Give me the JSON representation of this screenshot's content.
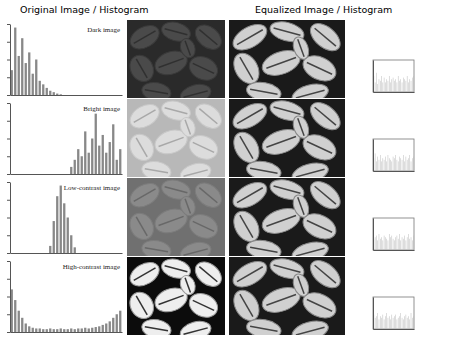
{
  "header": {
    "left": "Original Image / Histogram",
    "right": "Equalized Image / Histogram"
  },
  "chart_data": [
    {
      "type": "histogram",
      "title": "Dark image",
      "color": "#888888",
      "tick_labels": false,
      "bins": [
        0,
        8,
        16,
        24,
        32,
        40,
        48,
        56,
        64,
        72,
        80,
        88,
        96,
        104,
        112,
        120,
        128,
        136,
        144,
        152,
        160,
        168,
        176,
        184,
        192,
        200,
        208,
        216,
        224,
        232,
        240,
        248,
        256
      ],
      "counts": [
        0.35,
        0.95,
        0.55,
        0.8,
        0.45,
        0.6,
        0.3,
        0.5,
        0.2,
        0.15,
        0.1,
        0.06,
        0.04,
        0.02,
        0.01,
        0,
        0,
        0,
        0,
        0,
        0,
        0,
        0,
        0,
        0,
        0,
        0,
        0,
        0,
        0,
        0,
        0
      ],
      "xlim": [
        0,
        256
      ],
      "ylim": [
        0,
        1
      ],
      "yticks": [
        0,
        0.25,
        0.5,
        0.75,
        1
      ]
    },
    {
      "type": "histogram",
      "title": "Bright image",
      "color": "#888888",
      "tick_labels": false,
      "bins": [
        0,
        8,
        16,
        24,
        32,
        40,
        48,
        56,
        64,
        72,
        80,
        88,
        96,
        104,
        112,
        120,
        128,
        136,
        144,
        152,
        160,
        168,
        176,
        184,
        192,
        200,
        208,
        216,
        224,
        232,
        240,
        248,
        256
      ],
      "counts": [
        0,
        0,
        0,
        0,
        0,
        0,
        0,
        0,
        0,
        0,
        0,
        0,
        0,
        0,
        0,
        0,
        0,
        0.1,
        0.2,
        0.35,
        0.25,
        0.6,
        0.3,
        0.5,
        0.85,
        0.4,
        0.55,
        0.3,
        0.45,
        0.7,
        0.2,
        0.35
      ],
      "xlim": [
        0,
        256
      ],
      "ylim": [
        0,
        1
      ],
      "yticks": [
        0,
        0.25,
        0.5,
        0.75,
        1
      ]
    },
    {
      "type": "histogram",
      "title": "Low-contrast image",
      "color": "#888888",
      "tick_labels": false,
      "bins": [
        0,
        8,
        16,
        24,
        32,
        40,
        48,
        56,
        64,
        72,
        80,
        88,
        96,
        104,
        112,
        120,
        128,
        136,
        144,
        152,
        160,
        168,
        176,
        184,
        192,
        200,
        208,
        216,
        224,
        232,
        240,
        248,
        256
      ],
      "counts": [
        0,
        0,
        0,
        0,
        0,
        0,
        0,
        0,
        0,
        0,
        0,
        0.1,
        0.45,
        0.8,
        0.95,
        0.7,
        0.5,
        0.25,
        0.08,
        0,
        0,
        0,
        0,
        0,
        0,
        0,
        0,
        0,
        0,
        0,
        0,
        0
      ],
      "xlim": [
        0,
        256
      ],
      "ylim": [
        0,
        1
      ],
      "yticks": [
        0,
        0.25,
        0.5,
        0.75,
        1
      ]
    },
    {
      "type": "histogram",
      "title": "High-contrast image",
      "color": "#888888",
      "tick_labels": false,
      "bins": [
        0,
        8,
        16,
        24,
        32,
        40,
        48,
        56,
        64,
        72,
        80,
        88,
        96,
        104,
        112,
        120,
        128,
        136,
        144,
        152,
        160,
        168,
        176,
        184,
        192,
        200,
        208,
        216,
        224,
        232,
        240,
        248,
        256
      ],
      "counts": [
        0.6,
        0.45,
        0.3,
        0.2,
        0.12,
        0.08,
        0.06,
        0.05,
        0.05,
        0.04,
        0.04,
        0.05,
        0.04,
        0.04,
        0.05,
        0.04,
        0.04,
        0.05,
        0.04,
        0.05,
        0.05,
        0.06,
        0.05,
        0.06,
        0.07,
        0.08,
        0.1,
        0.12,
        0.15,
        0.2,
        0.25,
        0.3
      ],
      "xlim": [
        0,
        256
      ],
      "ylim": [
        0,
        1
      ],
      "yticks": [
        0,
        0.25,
        0.5,
        0.75,
        1
      ]
    },
    {
      "type": "histogram",
      "color": "#bbbbbb",
      "tick_labels": false,
      "bins": [
        0,
        8,
        16,
        24,
        32,
        40,
        48,
        56,
        64,
        72,
        80,
        88,
        96,
        104,
        112,
        120,
        128,
        136,
        144,
        152,
        160,
        168,
        176,
        184,
        192,
        200,
        208,
        216,
        224,
        232,
        240,
        248,
        256
      ],
      "counts": [
        0.5,
        0.3,
        0.6,
        0.25,
        0.4,
        0.35,
        0.5,
        0.3,
        0.45,
        0.3,
        0.4,
        0.35,
        0.5,
        0.3,
        0.4,
        0.45,
        0.35,
        0.4,
        0.3,
        0.5,
        0.35,
        0.4,
        0.3,
        0.45,
        0.4,
        0.35,
        0.5,
        0.3,
        0.4,
        0.35,
        0.45,
        0.5
      ],
      "xlim": [
        0,
        256
      ],
      "ylim": [
        0,
        1
      ]
    },
    {
      "type": "histogram",
      "color": "#bbbbbb",
      "tick_labels": false,
      "bins": [
        0,
        8,
        16,
        24,
        32,
        40,
        48,
        56,
        64,
        72,
        80,
        88,
        96,
        104,
        112,
        120,
        128,
        136,
        144,
        152,
        160,
        168,
        176,
        184,
        192,
        200,
        208,
        216,
        224,
        232,
        240,
        248,
        256
      ],
      "counts": [
        0.4,
        0.55,
        0.3,
        0.45,
        0.35,
        0.5,
        0.3,
        0.4,
        0.35,
        0.45,
        0.3,
        0.5,
        0.4,
        0.35,
        0.3,
        0.45,
        0.4,
        0.5,
        0.35,
        0.3,
        0.45,
        0.4,
        0.35,
        0.5,
        0.3,
        0.45,
        0.35,
        0.4,
        0.5,
        0.3,
        0.4,
        0.45
      ],
      "xlim": [
        0,
        256
      ],
      "ylim": [
        0,
        1
      ]
    },
    {
      "type": "histogram",
      "color": "#bbbbbb",
      "tick_labels": false,
      "bins": [
        0,
        8,
        16,
        24,
        32,
        40,
        48,
        56,
        64,
        72,
        80,
        88,
        96,
        104,
        112,
        120,
        128,
        136,
        144,
        152,
        160,
        168,
        176,
        184,
        192,
        200,
        208,
        216,
        224,
        232,
        240,
        248,
        256
      ],
      "counts": [
        0.35,
        0.4,
        0.45,
        0.3,
        0.5,
        0.35,
        0.4,
        0.3,
        0.45,
        0.4,
        0.35,
        0.3,
        0.5,
        0.4,
        0.45,
        0.35,
        0.3,
        0.4,
        0.45,
        0.35,
        0.5,
        0.3,
        0.4,
        0.35,
        0.45,
        0.3,
        0.4,
        0.5,
        0.35,
        0.4,
        0.3,
        0.45
      ],
      "xlim": [
        0,
        256
      ],
      "ylim": [
        0,
        1
      ]
    },
    {
      "type": "histogram",
      "color": "#bbbbbb",
      "tick_labels": false,
      "bins": [
        0,
        8,
        16,
        24,
        32,
        40,
        48,
        56,
        64,
        72,
        80,
        88,
        96,
        104,
        112,
        120,
        128,
        136,
        144,
        152,
        160,
        168,
        176,
        184,
        192,
        200,
        208,
        216,
        224,
        232,
        240,
        248,
        256
      ],
      "counts": [
        0.45,
        0.35,
        0.4,
        0.5,
        0.3,
        0.4,
        0.35,
        0.45,
        0.3,
        0.4,
        0.5,
        0.35,
        0.4,
        0.3,
        0.45,
        0.35,
        0.4,
        0.45,
        0.3,
        0.35,
        0.4,
        0.5,
        0.35,
        0.3,
        0.4,
        0.45,
        0.35,
        0.4,
        0.3,
        0.5,
        0.35,
        0.4
      ],
      "xlim": [
        0,
        256
      ],
      "ylim": [
        0,
        1
      ]
    }
  ]
}
